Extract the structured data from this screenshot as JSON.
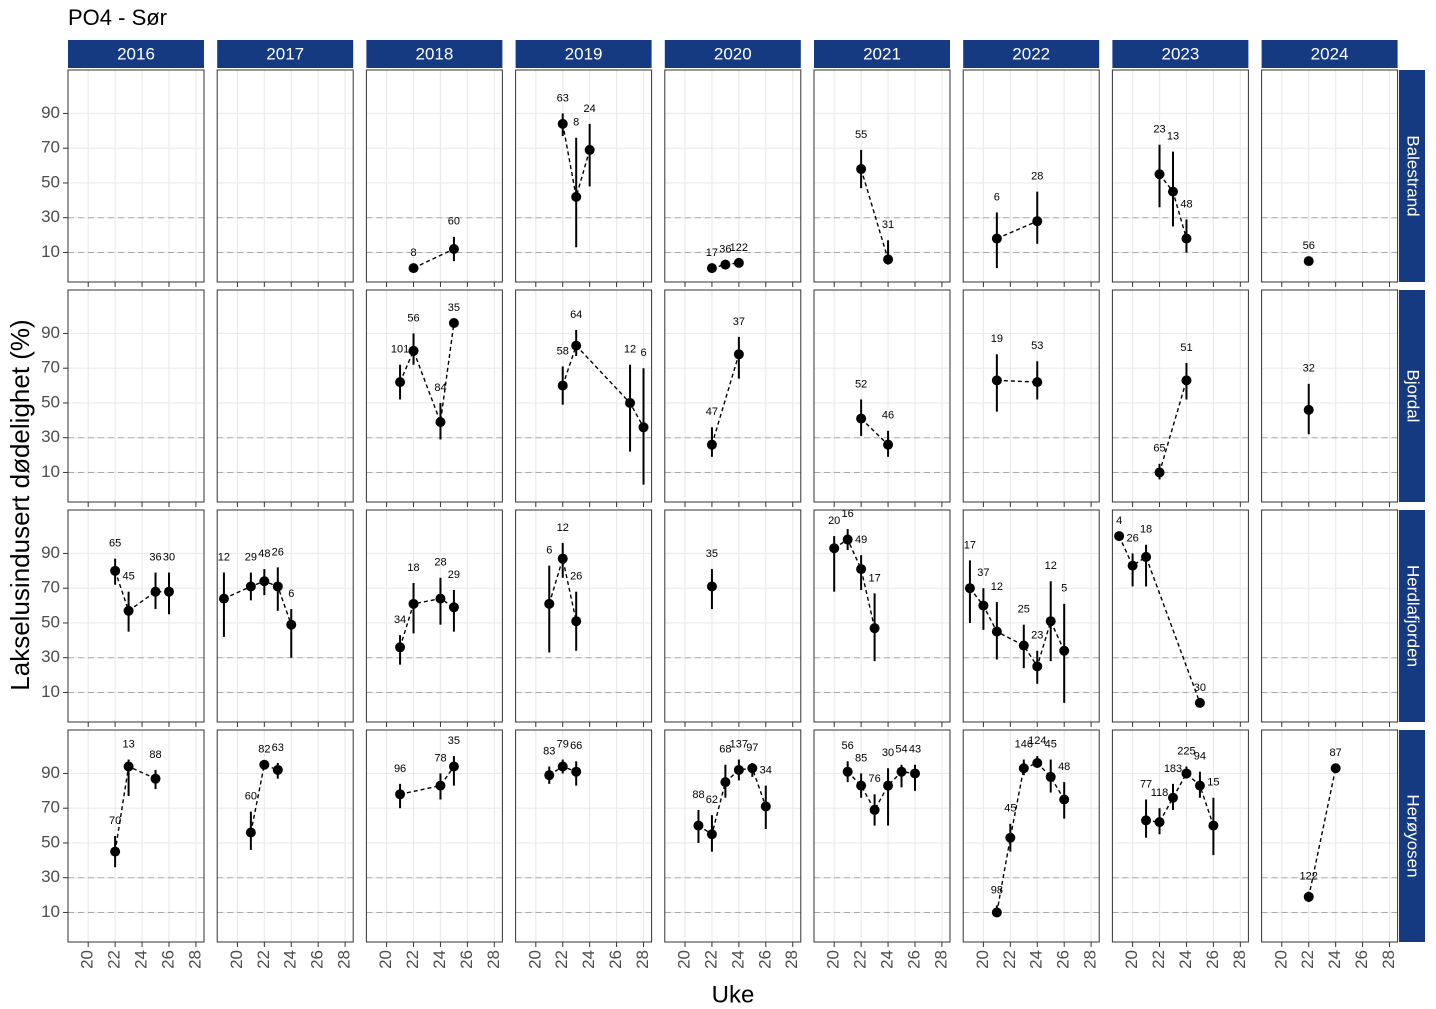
{
  "chart_data": {
    "type": "scatter",
    "title": "PO4 - Sør",
    "xlabel": "Uke",
    "ylabel": "Lakselusindusert dødelighet (%)",
    "xlim": [
      18.5,
      28.6
    ],
    "xticks": [
      20,
      22,
      24,
      26,
      28
    ],
    "ylim": [
      -7,
      115
    ],
    "yticks": [
      10,
      30,
      50,
      70,
      90
    ],
    "hlines": [
      10,
      30
    ],
    "grid": true,
    "color": "#000000",
    "strip_color": "#163a82",
    "columns": [
      "2016",
      "2017",
      "2018",
      "2019",
      "2020",
      "2021",
      "2022",
      "2023",
      "2024"
    ],
    "rows": [
      {
        "name": "Balestrand",
        "panels": [
          {
            "x": [],
            "y": [],
            "lo": [],
            "hi": [],
            "n": []
          },
          {
            "x": [],
            "y": [],
            "lo": [],
            "hi": [],
            "n": []
          },
          {
            "x": [
              22,
              25
            ],
            "y": [
              1,
              12
            ],
            "lo": [
              null,
              5
            ],
            "hi": [
              null,
              19
            ],
            "n": [
              8,
              60
            ]
          },
          {
            "x": [
              22,
              23,
              24
            ],
            "y": [
              84,
              42,
              69
            ],
            "lo": [
              77,
              13,
              48
            ],
            "hi": [
              90,
              76,
              84
            ],
            "n": [
              63,
              8,
              24
            ]
          },
          {
            "x": [
              22,
              23,
              24
            ],
            "y": [
              1,
              3,
              4
            ],
            "lo": [
              null,
              null,
              null
            ],
            "hi": [
              null,
              null,
              null
            ],
            "n": [
              17,
              36,
              122
            ]
          },
          {
            "x": [
              22,
              24
            ],
            "y": [
              58,
              6
            ],
            "lo": [
              47,
              3
            ],
            "hi": [
              69,
              17
            ],
            "n": [
              55,
              31
            ]
          },
          {
            "x": [
              21,
              24
            ],
            "y": [
              18,
              28
            ],
            "lo": [
              1,
              15
            ],
            "hi": [
              33,
              45
            ],
            "n": [
              6,
              28
            ]
          },
          {
            "x": [
              22,
              23,
              24
            ],
            "y": [
              55,
              45,
              18
            ],
            "lo": [
              36,
              25,
              10
            ],
            "hi": [
              72,
              68,
              29
            ],
            "n": [
              23,
              13,
              48
            ]
          },
          {
            "x": [
              22
            ],
            "y": [
              5
            ],
            "lo": [
              null
            ],
            "hi": [
              null
            ],
            "n": [
              56
            ]
          }
        ]
      },
      {
        "name": "Bjordal",
        "panels": [
          {
            "x": [],
            "y": [],
            "lo": [],
            "hi": [],
            "n": []
          },
          {
            "x": [],
            "y": [],
            "lo": [],
            "hi": [],
            "n": []
          },
          {
            "x": [
              21,
              22,
              24,
              25
            ],
            "y": [
              62,
              80,
              39,
              96
            ],
            "lo": [
              52,
              72,
              29,
              null
            ],
            "hi": [
              72,
              90,
              50,
              null
            ],
            "n": [
              101,
              56,
              84,
              35
            ]
          },
          {
            "x": [
              22,
              23,
              27,
              28
            ],
            "y": [
              60,
              83,
              50,
              36
            ],
            "lo": [
              49,
              77,
              22,
              3
            ],
            "hi": [
              71,
              92,
              72,
              70
            ],
            "n": [
              58,
              64,
              12,
              6
            ]
          },
          {
            "x": [
              22,
              24
            ],
            "y": [
              26,
              78
            ],
            "lo": [
              19,
              64
            ],
            "hi": [
              36,
              88
            ],
            "n": [
              47,
              37
            ]
          },
          {
            "x": [
              22,
              24
            ],
            "y": [
              41,
              26
            ],
            "lo": [
              31,
              19
            ],
            "hi": [
              52,
              34
            ],
            "n": [
              52,
              46
            ]
          },
          {
            "x": [
              21,
              24
            ],
            "y": [
              63,
              62
            ],
            "lo": [
              45,
              52
            ],
            "hi": [
              78,
              74
            ],
            "n": [
              19,
              53
            ]
          },
          {
            "x": [
              22,
              24
            ],
            "y": [
              10,
              63
            ],
            "lo": [
              6,
              52
            ],
            "hi": [
              15,
              73
            ],
            "n": [
              65,
              51
            ]
          },
          {
            "x": [
              22
            ],
            "y": [
              46
            ],
            "lo": [
              32
            ],
            "hi": [
              61
            ],
            "n": [
              32
            ]
          }
        ]
      },
      {
        "name": "Herdlafjorden",
        "panels": [
          {
            "x": [
              22,
              23,
              25,
              26
            ],
            "y": [
              80,
              57,
              68,
              68
            ],
            "lo": [
              72,
              45,
              58,
              55
            ],
            "hi": [
              87,
              68,
              79,
              79
            ],
            "n": [
              65,
              45,
              36,
              30
            ]
          },
          {
            "x": [
              19,
              21,
              22,
              23,
              24
            ],
            "y": [
              64,
              71,
              74,
              71,
              49
            ],
            "lo": [
              42,
              63,
              66,
              57,
              30
            ],
            "hi": [
              79,
              79,
              81,
              82,
              58
            ],
            "n": [
              12,
              29,
              48,
              26,
              6
            ]
          },
          {
            "x": [
              21,
              22,
              24,
              25
            ],
            "y": [
              36,
              61,
              64,
              59
            ],
            "lo": [
              26,
              44,
              49,
              45
            ],
            "hi": [
              43,
              73,
              76,
              69
            ],
            "n": [
              34,
              18,
              28,
              29
            ]
          },
          {
            "x": [
              21,
              22,
              23
            ],
            "y": [
              61,
              87,
              51
            ],
            "lo": [
              33,
              76,
              34
            ],
            "hi": [
              83,
              96,
              68
            ],
            "n": [
              6,
              12,
              26
            ]
          },
          {
            "x": [
              22
            ],
            "y": [
              71
            ],
            "lo": [
              58
            ],
            "hi": [
              81
            ],
            "n": [
              35
            ]
          },
          {
            "x": [
              20,
              21,
              22,
              23
            ],
            "y": [
              93,
              98,
              81,
              47
            ],
            "lo": [
              68,
              92,
              69,
              28
            ],
            "hi": [
              100,
              104,
              89,
              67
            ],
            "n": [
              20,
              16,
              49,
              17
            ]
          },
          {
            "x": [
              19,
              20,
              21,
              23,
              24,
              25,
              26
            ],
            "y": [
              70,
              60,
              45,
              37,
              25,
              51,
              34
            ],
            "lo": [
              50,
              46,
              29,
              24,
              15,
              28,
              4
            ],
            "hi": [
              86,
              70,
              62,
              49,
              34,
              74,
              61
            ],
            "n": [
              17,
              37,
              12,
              25,
              23,
              12,
              5
            ]
          },
          {
            "x": [
              19,
              20,
              21,
              25
            ],
            "y": [
              100,
              83,
              88,
              4
            ],
            "lo": [
              null,
              71,
              71,
              null
            ],
            "hi": [
              null,
              90,
              95,
              null
            ],
            "n": [
              4,
              26,
              18,
              30
            ]
          },
          {
            "x": [],
            "y": [],
            "lo": [],
            "hi": [],
            "n": []
          }
        ]
      },
      {
        "name": "Herøyosen",
        "panels": [
          {
            "x": [
              22,
              23,
              25
            ],
            "y": [
              45,
              94,
              87
            ],
            "lo": [
              36,
              77,
              81
            ],
            "hi": [
              54,
              98,
              92
            ],
            "n": [
              70,
              13,
              88
            ]
          },
          {
            "x": [
              21,
              22,
              23
            ],
            "y": [
              56,
              95,
              92
            ],
            "lo": [
              46,
              null,
              87
            ],
            "hi": [
              68,
              null,
              96
            ],
            "n": [
              60,
              82,
              63
            ]
          },
          {
            "x": [
              21,
              24,
              25
            ],
            "y": [
              78,
              83,
              94
            ],
            "lo": [
              70,
              75,
              83
            ],
            "hi": [
              84,
              90,
              100
            ],
            "n": [
              96,
              78,
              35
            ]
          },
          {
            "x": [
              21,
              22,
              23
            ],
            "y": [
              89,
              94,
              91
            ],
            "lo": [
              84,
              90,
              83
            ],
            "hi": [
              94,
              98,
              97
            ],
            "n": [
              83,
              79,
              66
            ]
          },
          {
            "x": [
              21,
              22,
              23,
              24,
              25,
              26
            ],
            "y": [
              60,
              55,
              85,
              92,
              93,
              71
            ],
            "lo": [
              50,
              45,
              76,
              86,
              88,
              58
            ],
            "hi": [
              69,
              66,
              95,
              98,
              96,
              83
            ],
            "n": [
              88,
              62,
              68,
              137,
              97,
              34
            ]
          },
          {
            "x": [
              21,
              22,
              23,
              24,
              25,
              26
            ],
            "y": [
              91,
              83,
              69,
              83,
              91,
              90
            ],
            "lo": [
              85,
              76,
              60,
              60,
              82,
              80
            ],
            "hi": [
              97,
              90,
              78,
              93,
              95,
              95
            ],
            "n": [
              56,
              85,
              76,
              30,
              54,
              43
            ]
          },
          {
            "x": [
              21,
              22,
              23,
              24,
              25,
              26
            ],
            "y": [
              10,
              53,
              93,
              96,
              88,
              75
            ],
            "lo": [
              8,
              45,
              89,
              94,
              79,
              64
            ],
            "hi": [
              14,
              61,
              98,
              100,
              98,
              85
            ],
            "n": [
              98,
              45,
              146,
              124,
              45,
              48
            ]
          },
          {
            "x": [
              21,
              22,
              23,
              24,
              25,
              26
            ],
            "y": [
              63,
              62,
              76,
              90,
              83,
              60
            ],
            "lo": [
              53,
              55,
              69,
              87,
              76,
              43
            ],
            "hi": [
              75,
              70,
              84,
              94,
              91,
              76
            ],
            "n": [
              77,
              118,
              183,
              225,
              94,
              15
            ]
          },
          {
            "x": [
              22,
              24
            ],
            "y": [
              19,
              93
            ],
            "lo": [
              16,
              null
            ],
            "hi": [
              22,
              null
            ],
            "n": [
              122,
              87
            ]
          }
        ]
      }
    ]
  }
}
